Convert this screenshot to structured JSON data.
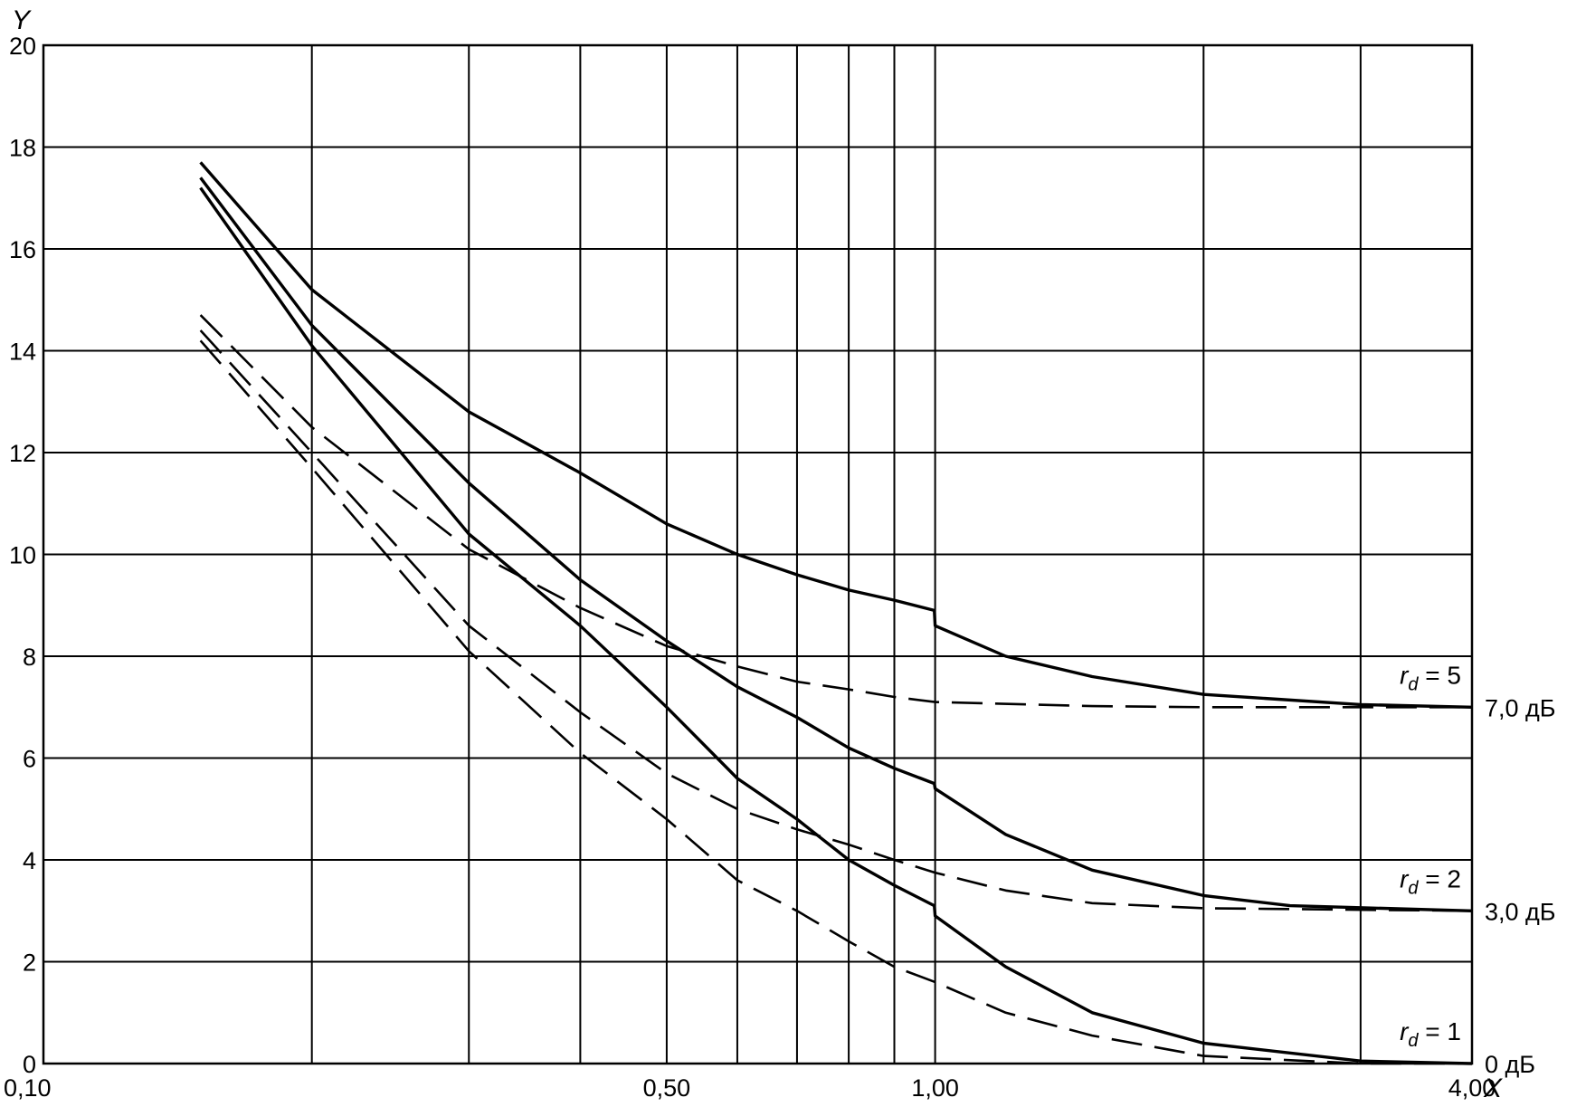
{
  "chart_data": {
    "type": "line",
    "title": "",
    "xlabel": "X",
    "ylabel": "Y",
    "x_scale": "log",
    "xlim": [
      0.1,
      4.0
    ],
    "ylim": [
      0,
      20
    ],
    "grid": true,
    "x_tick_labels": [
      {
        "x": 0.1,
        "label": "0,10"
      },
      {
        "x": 0.5,
        "label": "0,50"
      },
      {
        "x": 1.0,
        "label": "1,00"
      },
      {
        "x": 4.0,
        "label": "4,00"
      }
    ],
    "x_gridlines": [
      0.2,
      0.3,
      0.4,
      0.5,
      0.6,
      0.7,
      0.8,
      0.9,
      1.0,
      2.0,
      3.0
    ],
    "y_ticks": [
      0,
      2,
      4,
      6,
      8,
      10,
      12,
      14,
      16,
      18,
      20
    ],
    "series": [
      {
        "group": "rd5",
        "style": "solid",
        "points": [
          [
            0.15,
            17.7
          ],
          [
            0.2,
            15.2
          ],
          [
            0.3,
            12.8
          ],
          [
            0.4,
            11.6
          ],
          [
            0.5,
            10.6
          ],
          [
            0.6,
            10.0
          ],
          [
            0.7,
            9.6
          ],
          [
            0.8,
            9.3
          ],
          [
            0.9,
            9.1
          ],
          [
            0.998,
            8.9
          ],
          [
            1.0,
            8.6
          ],
          [
            1.2,
            8.0
          ],
          [
            1.5,
            7.6
          ],
          [
            2.0,
            7.25
          ],
          [
            3.0,
            7.05
          ],
          [
            4.0,
            7.0
          ]
        ]
      },
      {
        "group": "rd5",
        "style": "dashed",
        "points": [
          [
            0.15,
            14.7
          ],
          [
            0.2,
            12.5
          ],
          [
            0.3,
            10.1
          ],
          [
            0.4,
            8.95
          ],
          [
            0.5,
            8.2
          ],
          [
            0.6,
            7.8
          ],
          [
            0.7,
            7.5
          ],
          [
            0.8,
            7.35
          ],
          [
            0.9,
            7.2
          ],
          [
            1.0,
            7.1
          ],
          [
            1.5,
            7.02
          ],
          [
            2.0,
            7.0
          ],
          [
            4.0,
            7.0
          ]
        ]
      },
      {
        "group": "rd2",
        "style": "solid",
        "points": [
          [
            0.15,
            17.4
          ],
          [
            0.2,
            14.5
          ],
          [
            0.3,
            11.4
          ],
          [
            0.4,
            9.5
          ],
          [
            0.5,
            8.3
          ],
          [
            0.6,
            7.4
          ],
          [
            0.7,
            6.8
          ],
          [
            0.8,
            6.2
          ],
          [
            0.9,
            5.8
          ],
          [
            0.998,
            5.5
          ],
          [
            1.0,
            5.4
          ],
          [
            1.2,
            4.5
          ],
          [
            1.5,
            3.8
          ],
          [
            2.0,
            3.3
          ],
          [
            2.5,
            3.1
          ],
          [
            4.0,
            3.0
          ]
        ]
      },
      {
        "group": "rd2",
        "style": "dashed",
        "points": [
          [
            0.15,
            14.4
          ],
          [
            0.2,
            12.0
          ],
          [
            0.3,
            8.6
          ],
          [
            0.4,
            6.9
          ],
          [
            0.5,
            5.7
          ],
          [
            0.6,
            5.0
          ],
          [
            0.7,
            4.6
          ],
          [
            0.8,
            4.3
          ],
          [
            0.9,
            4.0
          ],
          [
            1.0,
            3.75
          ],
          [
            1.2,
            3.4
          ],
          [
            1.5,
            3.15
          ],
          [
            2.0,
            3.05
          ],
          [
            4.0,
            3.0
          ]
        ]
      },
      {
        "group": "rd1",
        "style": "solid",
        "points": [
          [
            0.15,
            17.2
          ],
          [
            0.2,
            14.1
          ],
          [
            0.3,
            10.4
          ],
          [
            0.4,
            8.6
          ],
          [
            0.5,
            7.0
          ],
          [
            0.6,
            5.6
          ],
          [
            0.7,
            4.8
          ],
          [
            0.8,
            4.0
          ],
          [
            0.9,
            3.5
          ],
          [
            0.998,
            3.1
          ],
          [
            1.0,
            2.9
          ],
          [
            1.2,
            1.9
          ],
          [
            1.5,
            1.0
          ],
          [
            2.0,
            0.4
          ],
          [
            3.0,
            0.05
          ],
          [
            4.0,
            0.0
          ]
        ]
      },
      {
        "group": "rd1",
        "style": "dashed",
        "points": [
          [
            0.15,
            14.2
          ],
          [
            0.2,
            11.7
          ],
          [
            0.3,
            8.1
          ],
          [
            0.4,
            6.1
          ],
          [
            0.5,
            4.8
          ],
          [
            0.6,
            3.6
          ],
          [
            0.7,
            3.0
          ],
          [
            0.8,
            2.4
          ],
          [
            0.9,
            1.9
          ],
          [
            1.0,
            1.6
          ],
          [
            1.2,
            1.0
          ],
          [
            1.5,
            0.55
          ],
          [
            2.0,
            0.15
          ],
          [
            3.0,
            0.0
          ],
          [
            4.0,
            0.0
          ]
        ]
      }
    ],
    "annotations": [
      {
        "group": "rd5",
        "base": "r",
        "sub": "d",
        "value": " = 5",
        "db": "7,0 дБ"
      },
      {
        "group": "rd2",
        "base": "r",
        "sub": "d",
        "value": " = 2",
        "db": "3,0 дБ"
      },
      {
        "group": "rd1",
        "base": "r",
        "sub": "d",
        "value": " = 1",
        "db": "0 дБ"
      }
    ],
    "line_color": "#000000"
  }
}
